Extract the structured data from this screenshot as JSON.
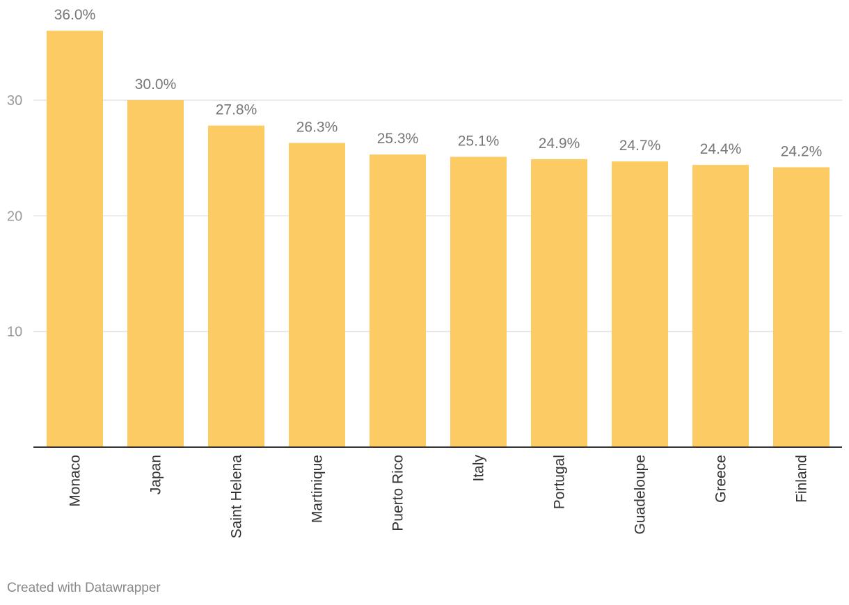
{
  "chart_data": {
    "type": "bar",
    "title": "",
    "xlabel": "",
    "ylabel": "",
    "categories": [
      "Monaco",
      "Japan",
      "Saint Helena",
      "Martinique",
      "Puerto Rico",
      "Italy",
      "Portugal",
      "Guadeloupe",
      "Greece",
      "Finland"
    ],
    "values": [
      36.0,
      30.0,
      27.8,
      26.3,
      25.3,
      25.1,
      24.9,
      24.7,
      24.4,
      24.2
    ],
    "data_labels": [
      "36.0%",
      "30.0%",
      "27.8%",
      "26.3%",
      "25.3%",
      "25.1%",
      "24.9%",
      "24.7%",
      "24.4%",
      "24.2%"
    ],
    "y_ticks": [
      10,
      20,
      30
    ],
    "y_tick_labels": [
      "10",
      "20",
      "30"
    ],
    "ylim": [
      0,
      36
    ],
    "grid": true,
    "legend": "none",
    "bar_color": "#fdcb64"
  },
  "footer": {
    "credit": "Created with Datawrapper"
  }
}
